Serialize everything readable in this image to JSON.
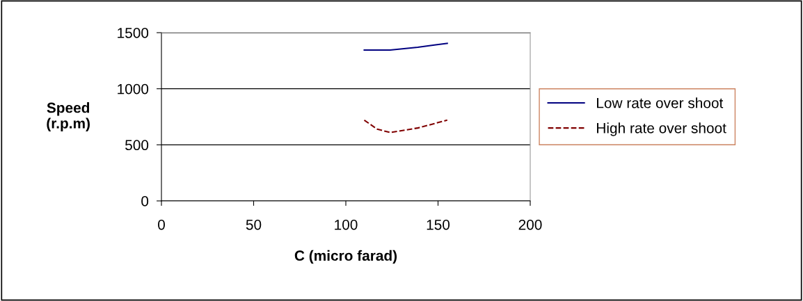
{
  "chart_data": {
    "type": "line",
    "xlabel": "C (micro farad)",
    "ylabel": "Speed\n(r.p.m)",
    "xlim": [
      0,
      200
    ],
    "xticks": [
      0,
      50,
      100,
      150,
      200
    ],
    "ylim": [
      0,
      1500
    ],
    "yticks": [
      0,
      500,
      1000,
      1500
    ],
    "grid": "y",
    "legend": "right",
    "marker": "none",
    "series": [
      {
        "name": "Low rate over shoot",
        "color": "#000080",
        "line_style": "solid",
        "x": [
          110,
          124,
          139,
          148,
          155
        ],
        "values": [
          1345,
          1345,
          1370,
          1390,
          1405
        ]
      },
      {
        "name": "High rate over shoot",
        "color": "#800000",
        "line_style": "dashed",
        "x": [
          110,
          117,
          124,
          139,
          155
        ],
        "values": [
          720,
          640,
          610,
          650,
          720
        ]
      }
    ]
  }
}
